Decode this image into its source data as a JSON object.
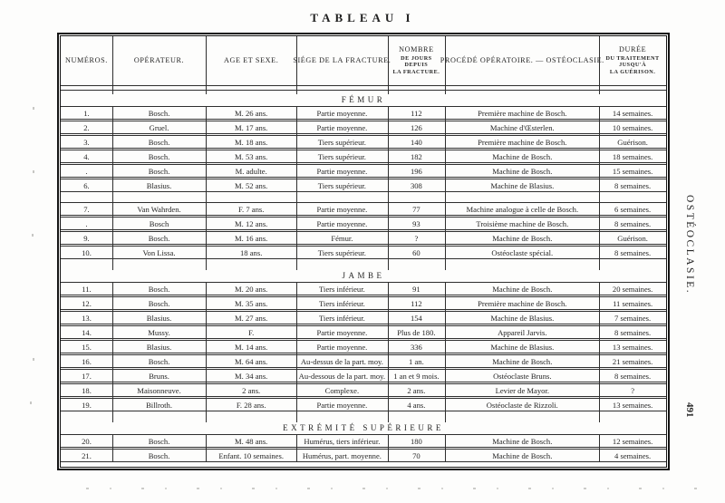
{
  "page": {
    "title": "TABLEAU I",
    "side_label": "OSTÉOCLASIE.",
    "page_number": "491"
  },
  "table": {
    "columns": [
      {
        "label": "NUMÉROS."
      },
      {
        "label": "OPÉRATEUR."
      },
      {
        "label": "AGE ET SEXE."
      },
      {
        "label": "SIÉGE DE LA FRACTURE."
      },
      {
        "label": "NOMBRE",
        "sub": [
          "DE JOURS",
          "DEPUIS",
          "LA FRACTURE."
        ]
      },
      {
        "label": "PROCÉDÉ OPÉRATOIRE. — OSTÉOCLASIE."
      },
      {
        "label": "DURÉE",
        "sub": [
          "DU TRAITEMENT",
          "JUSQU'À",
          "LA GUÉRISON."
        ]
      }
    ],
    "sections": [
      {
        "title": "FÉMUR",
        "groups": [
          {
            "rows": [
              {
                "num": "1.",
                "op": "Bosch.",
                "age": "M. 26 ans.",
                "siege": "Partie moyenne.",
                "jours": "112",
                "procede": "Première machine de Bosch.",
                "duree": "14 semaines."
              },
              {
                "num": "2.",
                "op": "Gruel.",
                "age": "M. 17 ans.",
                "siege": "Partie moyenne.",
                "jours": "126",
                "procede": "Machine d'Œsterlen.",
                "duree": "10 semaines."
              },
              {
                "num": "3.",
                "op": "Bosch.",
                "age": "M. 18 ans.",
                "siege": "Tiers supérieur.",
                "jours": "140",
                "procede": "Première machine de Bosch.",
                "duree": "Guérison."
              },
              {
                "num": "4.",
                "op": "Bosch.",
                "age": "M. 53 ans.",
                "siege": "Tiers supérieur.",
                "jours": "182",
                "procede": "Machine de Bosch.",
                "duree": "18 semaines."
              },
              {
                "num": ".",
                "op": "Bosch.",
                "age": "M. adulte.",
                "siege": "Partie moyenne.",
                "jours": "196",
                "procede": "Machine de Bosch.",
                "duree": "15 semaines."
              },
              {
                "num": "6.",
                "op": "Blasius.",
                "age": "M. 52 ans.",
                "siege": "Tiers supérieur.",
                "jours": "308",
                "procede": "Machine de Blasius.",
                "duree": "8 semaines."
              }
            ]
          },
          {
            "rows": [
              {
                "num": "7.",
                "op": "Van Wahrden.",
                "age": "F. 7 ans.",
                "siege": "Partie moyenne.",
                "jours": "77",
                "procede": "Machine analogue à celle de Bosch.",
                "duree": "6 semaines."
              },
              {
                "num": ".",
                "op": "Bosch",
                "age": "M. 12 ans.",
                "siege": "Partie moyenne.",
                "jours": "93",
                "procede": "Troisième machine de Bosch.",
                "duree": "8 semaines."
              },
              {
                "num": "9.",
                "op": "Bosch.",
                "age": "M. 16 ans.",
                "siege": "Fémur.",
                "jours": "?",
                "procede": "Machine de Bosch.",
                "duree": "Guérison."
              },
              {
                "num": "10.",
                "op": "Von Lissa.",
                "age": "18 ans.",
                "siege": "Tiers supérieur.",
                "jours": "60",
                "procede": "Ostéoclaste spécial.",
                "duree": "8 semaines."
              }
            ]
          }
        ]
      },
      {
        "title": "JAMBE",
        "groups": [
          {
            "rows": [
              {
                "num": "11.",
                "op": "Bosch.",
                "age": "M. 20 ans.",
                "siege": "Tiers inférieur.",
                "jours": "91",
                "procede": "Machine de Bosch.",
                "duree": "20 semaines."
              },
              {
                "num": "12.",
                "op": "Bosch.",
                "age": "M. 35 ans.",
                "siege": "Tiers inférieur.",
                "jours": "112",
                "procede": "Première machine de Bosch.",
                "duree": "11 semaines."
              },
              {
                "num": "13.",
                "op": "Blasius.",
                "age": "M. 27 ans.",
                "siege": "Tiers inférieur.",
                "jours": "154",
                "procede": "Machine de Blasius.",
                "duree": "7 semaines."
              },
              {
                "num": "14.",
                "op": "Mussy.",
                "age": "F.",
                "siege": "Partie moyenne.",
                "jours": "Plus de 180.",
                "procede": "Appareil Jarvis.",
                "duree": "8 semaines."
              },
              {
                "num": "15.",
                "op": "Blasius.",
                "age": "M. 14 ans.",
                "siege": "Partie moyenne.",
                "jours": "336",
                "procede": "Machine de Blasius.",
                "duree": "13 semaines."
              },
              {
                "num": "16.",
                "op": "Bosch.",
                "age": "M. 64 ans.",
                "siege": "Au-dessus de la part. moy.",
                "jours": "1 an.",
                "procede": "Machine de Bosch.",
                "duree": "21 semaines."
              },
              {
                "num": "17.",
                "op": "Bruns.",
                "age": "M. 34 ans.",
                "siege": "Au-dessous de la part. moy.",
                "jours": "1 an et 9 mois.",
                "procede": "Ostéoclaste Bruns.",
                "duree": "8 semaines."
              },
              {
                "num": "18.",
                "op": "Maisonneuve.",
                "age": "2 ans.",
                "siege": "Complexe.",
                "jours": "2 ans.",
                "procede": "Levier de Mayor.",
                "duree": "?"
              },
              {
                "num": "19.",
                "op": "Billroth.",
                "age": "F. 28 ans.",
                "siege": "Partie moyenne.",
                "jours": "4 ans.",
                "procede": "Ostéoclaste de Rizzoli.",
                "duree": "13 semaines."
              }
            ]
          }
        ]
      },
      {
        "title": "EXTRÉMITÉ SUPÉRIEURE",
        "groups": [
          {
            "rows": [
              {
                "num": "20.",
                "op": "Bosch.",
                "age": "M. 48 ans.",
                "siege": "Humérus, tiers inférieur.",
                "jours": "180",
                "procede": "Machine de Bosch.",
                "duree": "12 semaines."
              },
              {
                "num": "21.",
                "op": "Bosch.",
                "age": "Enfant. 10 semaines.",
                "siege": "Humérus, part. moyenne.",
                "jours": "70",
                "procede": "Machine de Bosch.",
                "duree": "4 semaines."
              }
            ]
          }
        ]
      }
    ]
  }
}
